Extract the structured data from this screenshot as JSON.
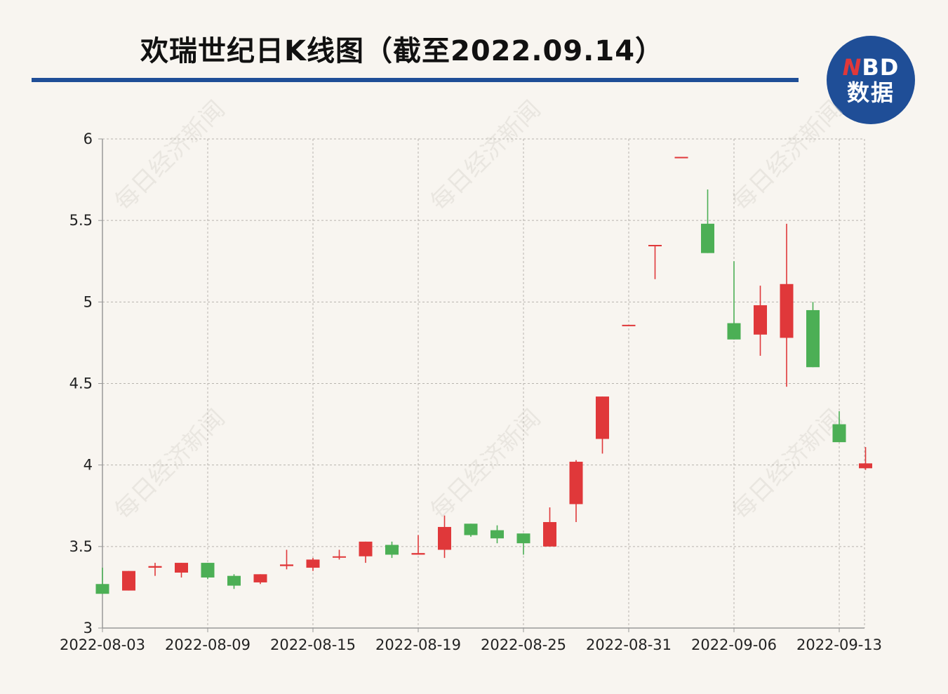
{
  "title": "欢瑞世纪日K线图（截至2022.09.14）",
  "logo": {
    "line1_n": "N",
    "line1_rest": "BD",
    "line2": "数据"
  },
  "watermark": "每日经济新闻",
  "colors": {
    "up": "#e0383a",
    "down": "#4caf55",
    "accent": "#1f4e97",
    "grid": "#b8b4ae",
    "axis": "#999999"
  },
  "chart_data": {
    "type": "candlestick",
    "title": "欢瑞世纪日K线图（截至2022.09.14）",
    "ylim": [
      3,
      6
    ],
    "y_ticks": [
      3,
      3.5,
      4,
      4.5,
      5,
      5.5,
      6
    ],
    "y_tick_labels": [
      "3",
      "3.5",
      "4",
      "4.5",
      "5",
      "5.5",
      "6"
    ],
    "x_tick_labels": [
      "2022-08-03",
      "2022-08-09",
      "2022-08-15",
      "2022-08-19",
      "2022-08-25",
      "2022-08-31",
      "2022-09-06",
      "2022-09-13"
    ],
    "grid": true,
    "candles": [
      {
        "date": "2022-08-03",
        "open": 3.27,
        "high": 3.37,
        "low": 3.21,
        "close": 3.21
      },
      {
        "date": "2022-08-04",
        "open": 3.23,
        "high": 3.35,
        "low": 3.23,
        "close": 3.35
      },
      {
        "date": "2022-08-05",
        "open": 3.37,
        "high": 3.4,
        "low": 3.32,
        "close": 3.38
      },
      {
        "date": "2022-08-08",
        "open": 3.34,
        "high": 3.4,
        "low": 3.31,
        "close": 3.4
      },
      {
        "date": "2022-08-09",
        "open": 3.4,
        "high": 3.4,
        "low": 3.3,
        "close": 3.31
      },
      {
        "date": "2022-08-10",
        "open": 3.32,
        "high": 3.33,
        "low": 3.24,
        "close": 3.26
      },
      {
        "date": "2022-08-11",
        "open": 3.28,
        "high": 3.33,
        "low": 3.27,
        "close": 3.33
      },
      {
        "date": "2022-08-12",
        "open": 3.38,
        "high": 3.48,
        "low": 3.36,
        "close": 3.39
      },
      {
        "date": "2022-08-15",
        "open": 3.37,
        "high": 3.43,
        "low": 3.35,
        "close": 3.42
      },
      {
        "date": "2022-08-16",
        "open": 3.44,
        "high": 3.48,
        "low": 3.42,
        "close": 3.44
      },
      {
        "date": "2022-08-17",
        "open": 3.44,
        "high": 3.53,
        "low": 3.4,
        "close": 3.53
      },
      {
        "date": "2022-08-18",
        "open": 3.51,
        "high": 3.53,
        "low": 3.43,
        "close": 3.45
      },
      {
        "date": "2022-08-19",
        "open": 3.45,
        "high": 3.57,
        "low": 3.45,
        "close": 3.46
      },
      {
        "date": "2022-08-22",
        "open": 3.48,
        "high": 3.69,
        "low": 3.43,
        "close": 3.62
      },
      {
        "date": "2022-08-23",
        "open": 3.64,
        "high": 3.64,
        "low": 3.56,
        "close": 3.57
      },
      {
        "date": "2022-08-24",
        "open": 3.6,
        "high": 3.63,
        "low": 3.52,
        "close": 3.55
      },
      {
        "date": "2022-08-25",
        "open": 3.58,
        "high": 3.58,
        "low": 3.45,
        "close": 3.52
      },
      {
        "date": "2022-08-26",
        "open": 3.5,
        "high": 3.74,
        "low": 3.5,
        "close": 3.65
      },
      {
        "date": "2022-08-29",
        "open": 3.76,
        "high": 4.03,
        "low": 3.65,
        "close": 4.02
      },
      {
        "date": "2022-08-30",
        "open": 4.16,
        "high": 4.42,
        "low": 4.07,
        "close": 4.42
      },
      {
        "date": "2022-08-31",
        "open": 4.86,
        "high": 4.86,
        "low": 4.86,
        "close": 4.86
      },
      {
        "date": "2022-09-01",
        "open": 5.35,
        "high": 5.35,
        "low": 5.14,
        "close": 5.35
      },
      {
        "date": "2022-09-02",
        "open": 5.89,
        "high": 5.89,
        "low": 5.89,
        "close": 5.89
      },
      {
        "date": "2022-09-05",
        "open": 5.48,
        "high": 5.69,
        "low": 5.3,
        "close": 5.3
      },
      {
        "date": "2022-09-06",
        "open": 4.87,
        "high": 5.25,
        "low": 4.77,
        "close": 4.77
      },
      {
        "date": "2022-09-07",
        "open": 4.8,
        "high": 5.1,
        "low": 4.67,
        "close": 4.98
      },
      {
        "date": "2022-09-08",
        "open": 4.78,
        "high": 5.48,
        "low": 4.48,
        "close": 5.11
      },
      {
        "date": "2022-09-09",
        "open": 4.95,
        "high": 5.0,
        "low": 4.6,
        "close": 4.6
      },
      {
        "date": "2022-09-13",
        "open": 4.25,
        "high": 4.33,
        "low": 4.14,
        "close": 4.14
      },
      {
        "date": "2022-09-14",
        "open": 3.98,
        "high": 4.11,
        "low": 3.97,
        "close": 4.01
      }
    ]
  }
}
